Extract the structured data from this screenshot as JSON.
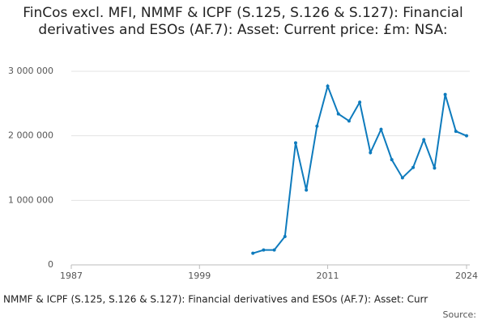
{
  "chart_data": {
    "type": "line",
    "title": "FinCos excl. MFI, NMMF & ICPF (S.125, S.126 & S.127): Financial derivatives and ESOs (AF.7): Asset: Current price: £m: NSA:",
    "x_label": "NMMF & ICPF (S.125, S.126 & S.127): Financial derivatives and ESOs (AF.7): Asset: Curr",
    "source": "Source:",
    "x": [
      2004,
      2005,
      2006,
      2007,
      2008,
      2009,
      2010,
      2011,
      2012,
      2013,
      2014,
      2015,
      2016,
      2017,
      2018,
      2019,
      2020,
      2021,
      2022,
      2023,
      2024
    ],
    "series": [
      {
        "color": "#0e7bbd",
        "values": [
          180000,
          230000,
          230000,
          440000,
          1890000,
          1160000,
          2150000,
          2770000,
          2340000,
          2230000,
          2520000,
          1740000,
          2100000,
          1630000,
          1350000,
          1510000,
          1940000,
          1500000,
          2640000,
          2070000,
          2000000
        ]
      }
    ],
    "xlim": [
      1987,
      2024
    ],
    "xticks": [
      1987,
      1999,
      2011,
      2024
    ],
    "ylim": [
      0,
      3000000
    ],
    "yticks": [
      0,
      {
        "value": 1000000,
        "label": "1 000 000"
      },
      {
        "value": 2000000,
        "label": "2 000 000"
      },
      {
        "value": 3000000,
        "label": "3 000 000"
      }
    ],
    "grid": true
  }
}
